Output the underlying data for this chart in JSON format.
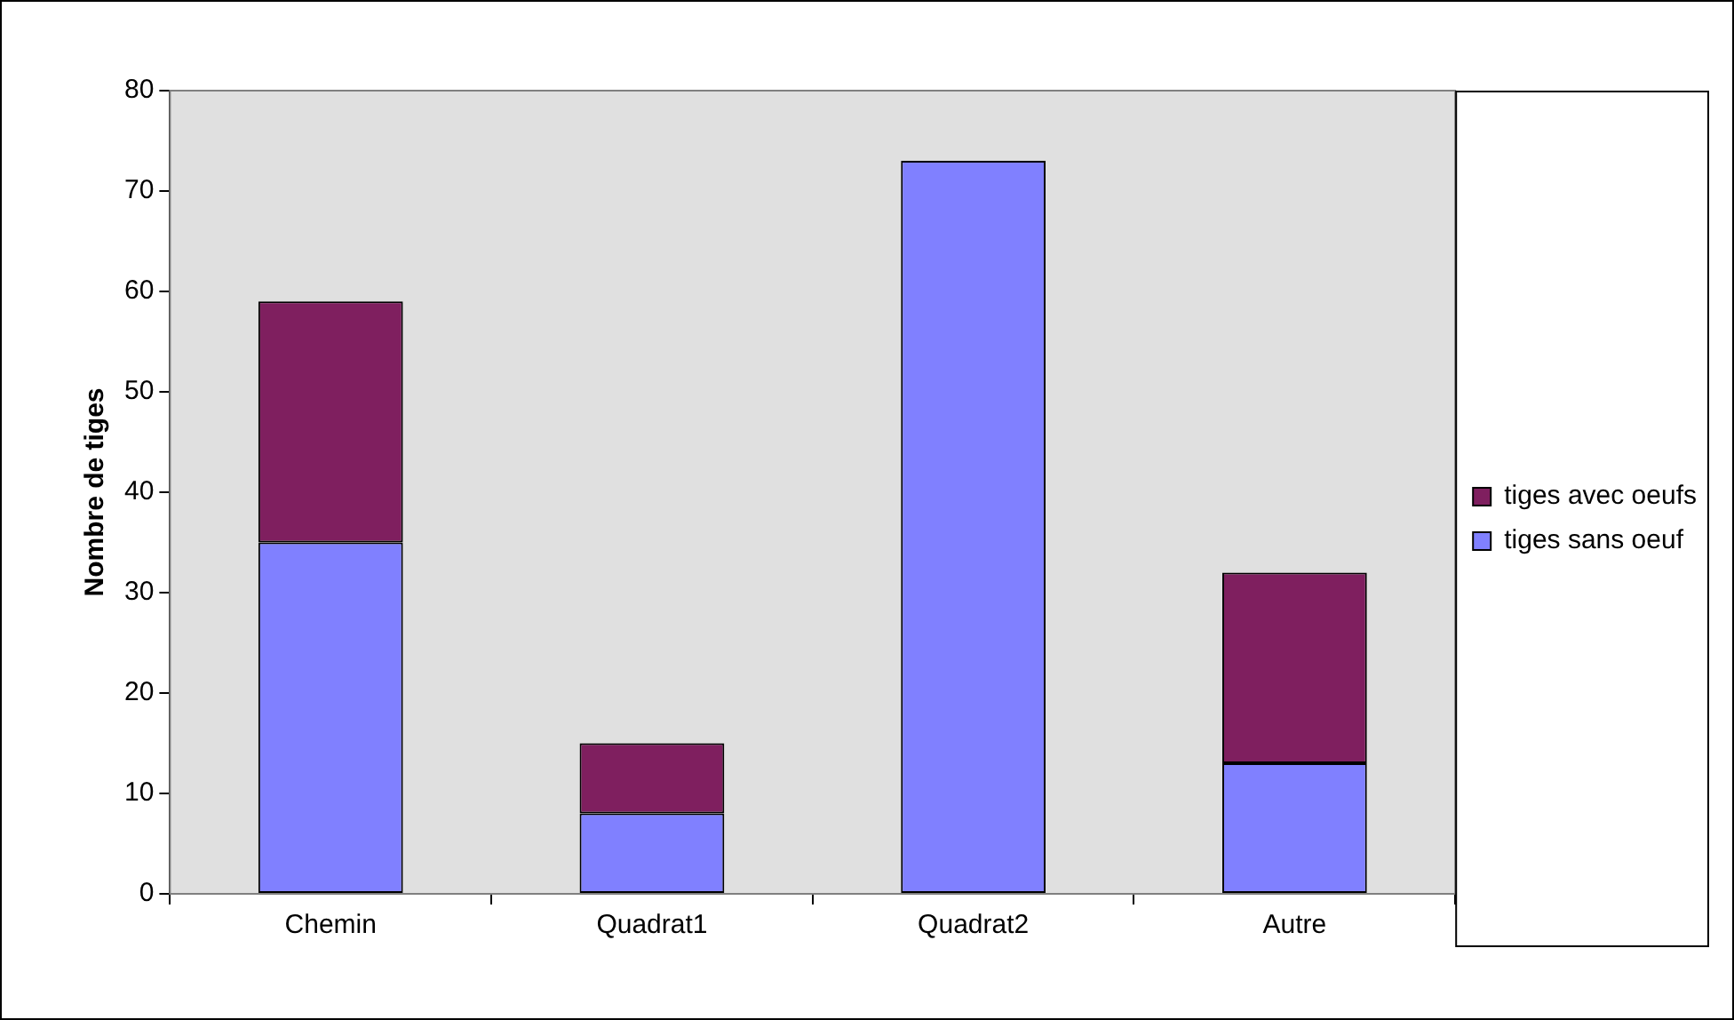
{
  "chart_data": {
    "type": "bar",
    "ylabel": "Nombre de tiges",
    "categories": [
      "Chemin",
      "Quadrat1",
      "Quadrat2",
      "Autre"
    ],
    "stacked": true,
    "series": [
      {
        "name": "tiges sans oeuf",
        "color": "#8080ff",
        "values": [
          35,
          8,
          73,
          13
        ]
      },
      {
        "name": "tiges avec oeufs",
        "color": "#7f1f5f",
        "values": [
          24,
          7,
          0,
          19
        ]
      }
    ],
    "ylim": [
      0,
      80
    ],
    "yticks": [
      0,
      10,
      20,
      30,
      40,
      50,
      60,
      70,
      80
    ],
    "grid": false,
    "legend": "right"
  }
}
